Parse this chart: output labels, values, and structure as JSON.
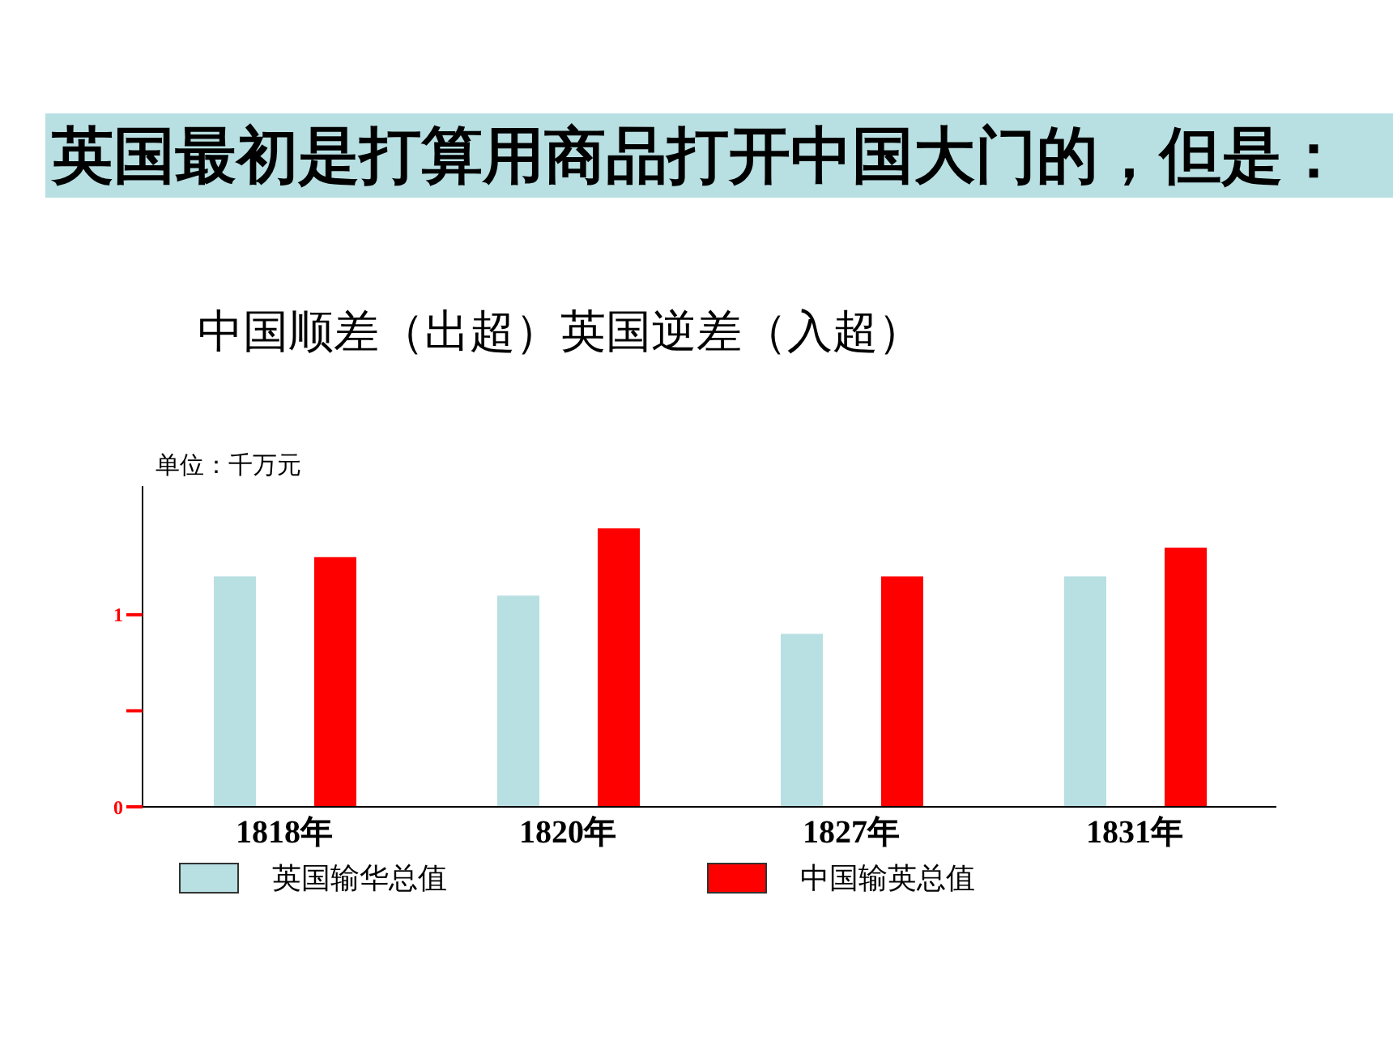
{
  "chart_data": {
    "type": "bar",
    "title": "英国最初是打算用商品打开中国大门的，但是：",
    "subtitle": "中国顺差（出超）英国逆差（入超）",
    "ylabel": "单位：千万元",
    "categories": [
      "1818年",
      "1820年",
      "1827年",
      "1831年"
    ],
    "series": [
      {
        "name": "英国输华总值",
        "color": "#b8dfe2",
        "values": [
          1.2,
          1.1,
          0.9,
          1.2
        ]
      },
      {
        "name": "中国输英总值",
        "color": "#ff0000",
        "values": [
          1.3,
          1.45,
          1.2,
          1.35
        ]
      }
    ],
    "ylim": [
      0,
      1.67
    ],
    "yticks": [
      0,
      {
        "value": 0.5,
        "label": null
      },
      1
    ],
    "grid": false,
    "legend": "bottom"
  }
}
